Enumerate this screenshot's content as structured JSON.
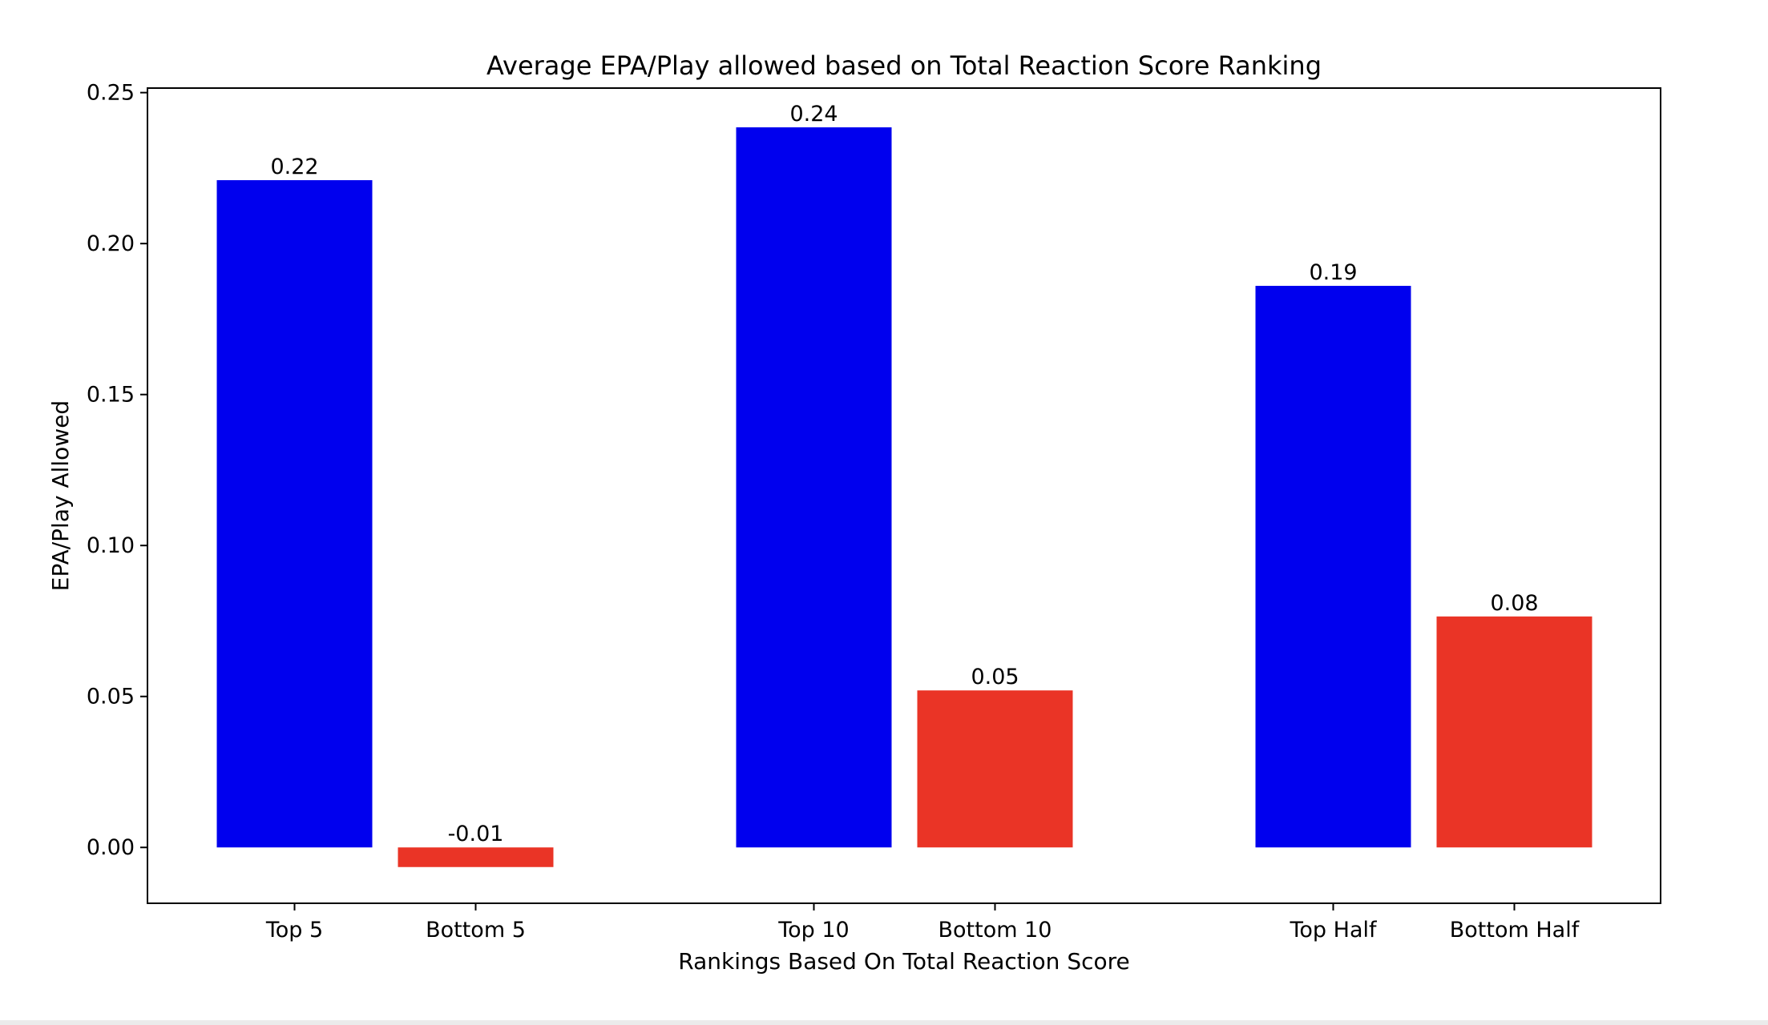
{
  "chart_data": {
    "type": "bar",
    "title": "Average EPA/Play allowed based on Total Reaction Score Ranking",
    "xlabel": "Rankings Based On Total Reaction Score",
    "ylabel": "EPA/Play Allowed",
    "ylim": [
      -0.0185,
      0.2515
    ],
    "yticks": [
      "0.00",
      "0.05",
      "0.10",
      "0.15",
      "0.20",
      "0.25"
    ],
    "grid": false,
    "legend": "none",
    "bars": [
      {
        "category": "Top 5",
        "value": 0.221,
        "label": "0.22",
        "color": "#0000ee"
      },
      {
        "category": "Bottom 5",
        "value": -0.0065,
        "label": "-0.01",
        "color": "#ea3426"
      },
      {
        "category": "Top 10",
        "value": 0.2385,
        "label": "0.24",
        "color": "#0000ee"
      },
      {
        "category": "Bottom 10",
        "value": 0.052,
        "label": "0.05",
        "color": "#ea3426"
      },
      {
        "category": "Top Half",
        "value": 0.186,
        "label": "0.19",
        "color": "#0000ee"
      },
      {
        "category": "Bottom Half",
        "value": 0.0765,
        "label": "0.08",
        "color": "#ea3426"
      }
    ]
  }
}
